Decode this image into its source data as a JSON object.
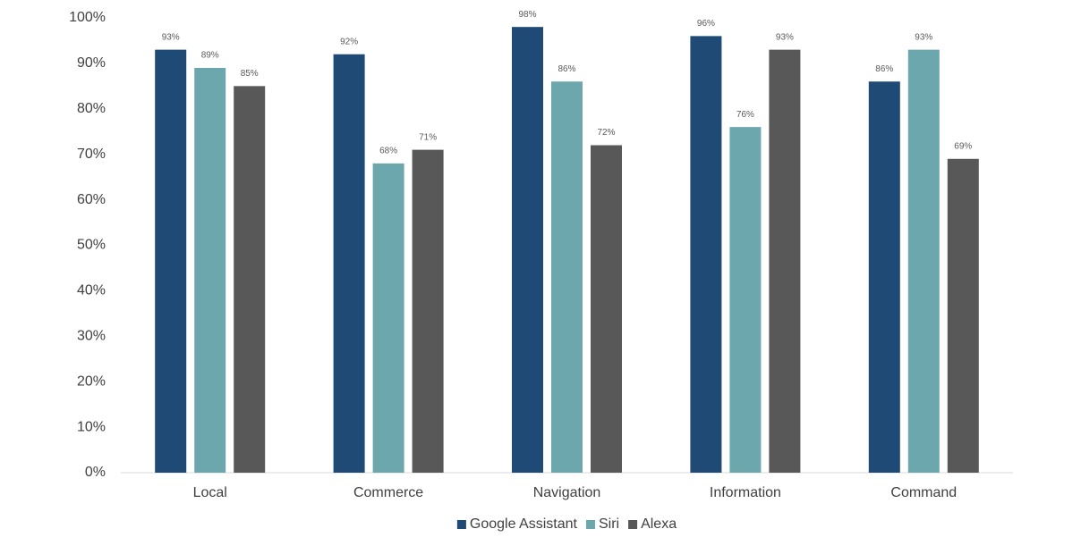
{
  "chart_data": {
    "type": "bar",
    "categories": [
      "Local",
      "Commerce",
      "Navigation",
      "Information",
      "Command"
    ],
    "series": [
      {
        "name": "Google Assistant",
        "color": "#1f4a75",
        "values": [
          93,
          92,
          98,
          96,
          86
        ],
        "value_labels": [
          "93%",
          "92%",
          "98%",
          "96%",
          "86%"
        ]
      },
      {
        "name": "Siri",
        "color": "#6ba7ac",
        "values": [
          89,
          68,
          86,
          76,
          93
        ],
        "value_labels": [
          "89%",
          "68%",
          "86%",
          "76%",
          "93%"
        ]
      },
      {
        "name": "Alexa",
        "color": "#585858",
        "values": [
          85,
          71,
          72,
          93,
          69
        ],
        "value_labels": [
          "85%",
          "71%",
          "72%",
          "93%",
          "69%"
        ]
      }
    ],
    "ylim": [
      0,
      100
    ],
    "yticks": [
      {
        "value": 0,
        "label": "0%"
      },
      {
        "value": 10,
        "label": "10%"
      },
      {
        "value": 20,
        "label": "20%"
      },
      {
        "value": 30,
        "label": "30%"
      },
      {
        "value": 40,
        "label": "40%"
      },
      {
        "value": 50,
        "label": "50%"
      },
      {
        "value": 60,
        "label": "60%"
      },
      {
        "value": 70,
        "label": "70%"
      },
      {
        "value": 80,
        "label": "80%"
      },
      {
        "value": 90,
        "label": "90%"
      },
      {
        "value": 100,
        "label": "100%"
      }
    ],
    "grid": false,
    "legend": "bottom"
  }
}
